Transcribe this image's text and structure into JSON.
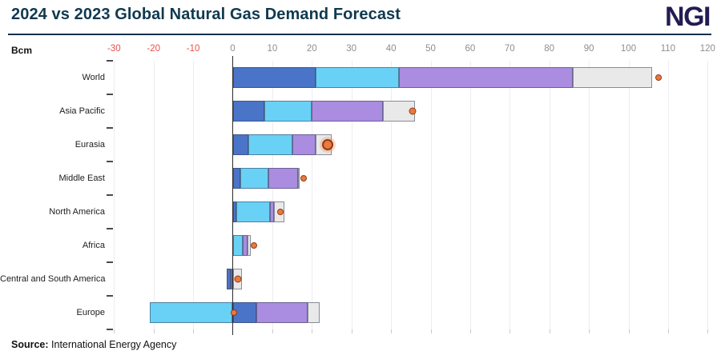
{
  "header": {
    "title": "2024 vs 2023 Global Natural Gas Demand Forecast",
    "title_color": "#10394f",
    "logo": "NGI",
    "logo_color": "#211d52"
  },
  "source": {
    "label": "Source:",
    "text": " International Energy Agency"
  },
  "chart_data": {
    "type": "bar",
    "orientation": "horizontal",
    "title": "2024 vs 2023 Global Natural Gas Demand Forecast",
    "xlabel": "Bcm",
    "unit_label": "Bcm",
    "xlim": [
      -30,
      120
    ],
    "ticks": [
      -30,
      -20,
      -10,
      0,
      10,
      20,
      30,
      40,
      50,
      60,
      70,
      80,
      90,
      100,
      110,
      120
    ],
    "grid": true,
    "legend_position": "none",
    "categories": [
      "World",
      "Asia Pacific",
      "Eurasia",
      "Middle East",
      "North America",
      "Africa",
      "Central and South America",
      "Europe"
    ],
    "series": [
      {
        "name": "series-dark-blue",
        "color": "#4a74c8",
        "values": [
          21,
          8,
          4,
          2,
          1,
          0,
          -0.9,
          6
        ]
      },
      {
        "name": "series-light-blue",
        "color": "#69d1f5",
        "values": [
          21,
          12,
          11,
          7,
          8.5,
          2.6,
          0,
          -21
        ]
      },
      {
        "name": "series-purple",
        "color": "#aa8ce0",
        "values": [
          44,
          18,
          6,
          7.5,
          1,
          1.2,
          -0.6,
          13
        ]
      },
      {
        "name": "series-gray",
        "color": "#e9e9e9",
        "values": [
          20,
          8,
          4,
          0.5,
          2.5,
          0.8,
          2.3,
          3
        ]
      }
    ],
    "markers": {
      "name": "net-change-marker",
      "fill": "#ea7a3b",
      "stroke": "#93391b",
      "values": [
        107.5,
        45.5,
        24,
        18,
        12,
        5.3,
        1.4,
        0.3
      ],
      "sizes": [
        8,
        9,
        14,
        8,
        8,
        8,
        9,
        8
      ]
    },
    "colors": {
      "negative_tick": "#e8504a",
      "positive_tick": "#8e8e8e",
      "gridline": "#ededf2",
      "zeroline": "#2b2b2b",
      "tick_stub": "#c9c9d0"
    }
  }
}
